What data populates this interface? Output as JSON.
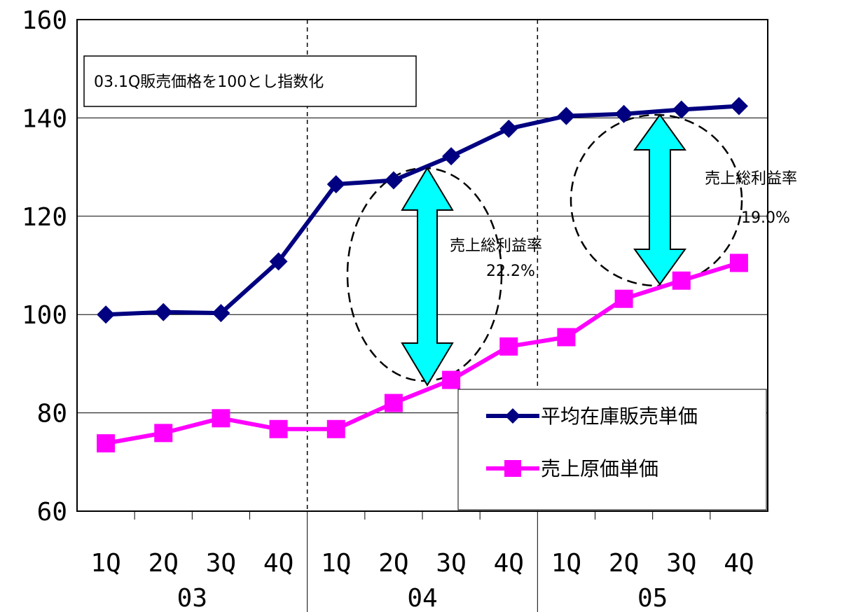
{
  "chart_data": {
    "type": "line",
    "ylim": [
      60,
      160
    ],
    "yticks": [
      "60",
      "80",
      "100",
      "120",
      "140",
      "160"
    ],
    "x_quarters": [
      "1Q",
      "2Q",
      "3Q",
      "4Q",
      "1Q",
      "2Q",
      "3Q",
      "4Q",
      "1Q",
      "2Q",
      "3Q",
      "4Q"
    ],
    "x_years": [
      "03",
      "04",
      "05"
    ],
    "grid": "horizontal",
    "legend_position": "lower-right",
    "series": [
      {
        "name": "平均在庫販売単価",
        "color": "#000080",
        "marker": "diamond",
        "values": [
          100.0,
          100.5,
          100.3,
          110.8,
          126.5,
          127.3,
          132.2,
          137.8,
          140.4,
          140.8,
          141.7,
          142.4
        ]
      },
      {
        "name": "売上原価単価",
        "color": "#ff00ff",
        "marker": "square",
        "values": [
          73.8,
          75.9,
          78.9,
          76.7,
          76.7,
          82.0,
          86.7,
          93.5,
          95.4,
          103.2,
          106.9,
          110.5
        ]
      }
    ],
    "annotations": {
      "note_box": "03.1Q販売価格を100とし指数化",
      "margin1_label": "売上総利益率",
      "margin1_value": "22.2%",
      "margin2_label": "売上総利益率",
      "margin2_value": "19.0%",
      "arrow_color": "#00ffff"
    }
  }
}
